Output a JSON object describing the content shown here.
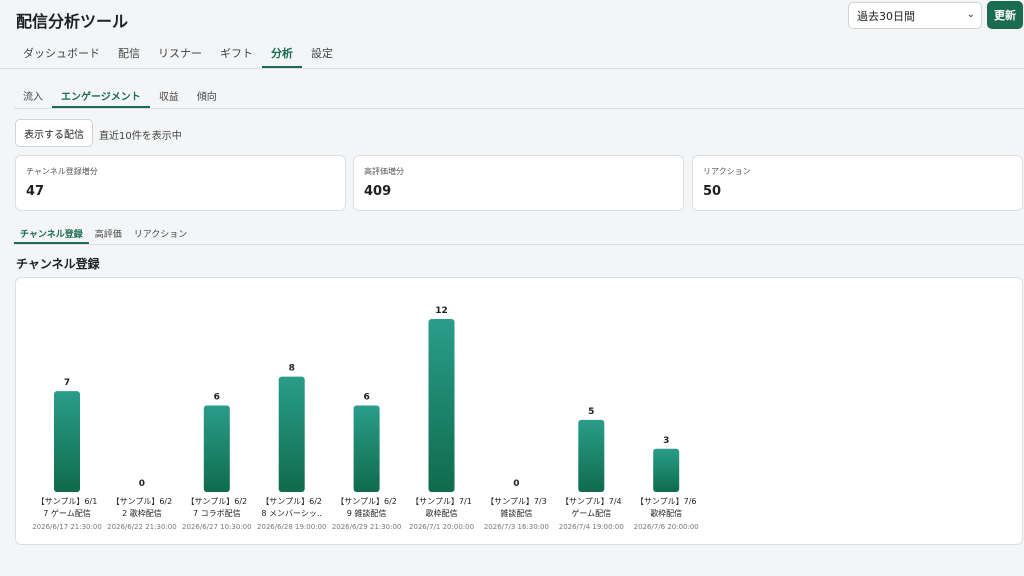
{
  "app": {
    "title": "配信分析ツール"
  },
  "header": {
    "range_value": "過去30日間",
    "update_label": "更新"
  },
  "main_tabs": [
    {
      "label": "ダッシュボード",
      "active": false
    },
    {
      "label": "配信",
      "active": false
    },
    {
      "label": "リスナー",
      "active": false
    },
    {
      "label": "ギフト",
      "active": false
    },
    {
      "label": "分析",
      "active": true
    },
    {
      "label": "設定",
      "active": false
    }
  ],
  "sub_tabs": [
    {
      "label": "流入",
      "active": false
    },
    {
      "label": "エンゲージメント",
      "active": true
    },
    {
      "label": "収益",
      "active": false
    },
    {
      "label": "傾向",
      "active": false
    }
  ],
  "streams": {
    "button_label": "表示する配信",
    "info": "直近10件を表示中"
  },
  "stats": [
    {
      "label": "チャンネル登録増分",
      "value": "47"
    },
    {
      "label": "高評価増分",
      "value": "409"
    },
    {
      "label": "リアクション",
      "value": "50"
    }
  ],
  "metric_tabs": [
    {
      "label": "チャンネル登録",
      "active": true
    },
    {
      "label": "高評価",
      "active": false
    },
    {
      "label": "リアクション",
      "active": false
    }
  ],
  "chart_title": "チャンネル登録",
  "colors": {
    "accent": "#1a6b4f",
    "bar_top": "#2a9d8a",
    "bar_bottom": "#0f6b4c"
  },
  "chart_data": {
    "type": "bar",
    "categories": [
      "【サンプル】6/17 ゲーム配信",
      "【サンプル】6/22 歌枠配信",
      "【サンプル】6/27 コラボ配信",
      "【サンプル】6/28 メンバーシッ…",
      "【サンプル】6/29 雑談配信",
      "【サンプル】7/1 歌枠配信",
      "【サンプル】7/3 雑談配信",
      "【サンプル】7/4 ゲーム配信",
      "【サンプル】7/6 歌枠配信"
    ],
    "label_lines": [
      [
        "【サンプル】6/1",
        "7 ゲーム配信"
      ],
      [
        "【サンプル】6/2",
        "2 歌枠配信"
      ],
      [
        "【サンプル】6/2",
        "7 コラボ配信"
      ],
      [
        "【サンプル】6/2",
        "8 メンバーシッ.."
      ],
      [
        "【サンプル】6/2",
        "9 雑談配信"
      ],
      [
        "【サンプル】7/1",
        "歌枠配信"
      ],
      [
        "【サンプル】7/3",
        "雑談配信"
      ],
      [
        "【サンプル】7/4",
        "ゲーム配信"
      ],
      [
        "【サンプル】7/6",
        "歌枠配信"
      ]
    ],
    "datetimes": [
      "2026/6/17 21:30:00",
      "2026/6/22 21:30:00",
      "2026/6/27 10:30:00",
      "2026/6/28 19:00:00",
      "2026/6/29 21:30:00",
      "2026/7/1 20:00:00",
      "2026/7/3 16:30:00",
      "2026/7/4 19:00:00",
      "2026/7/6 20:00:00"
    ],
    "values": [
      7,
      0,
      6,
      8,
      6,
      12,
      0,
      5,
      3
    ],
    "ylim": [
      0,
      12
    ]
  }
}
